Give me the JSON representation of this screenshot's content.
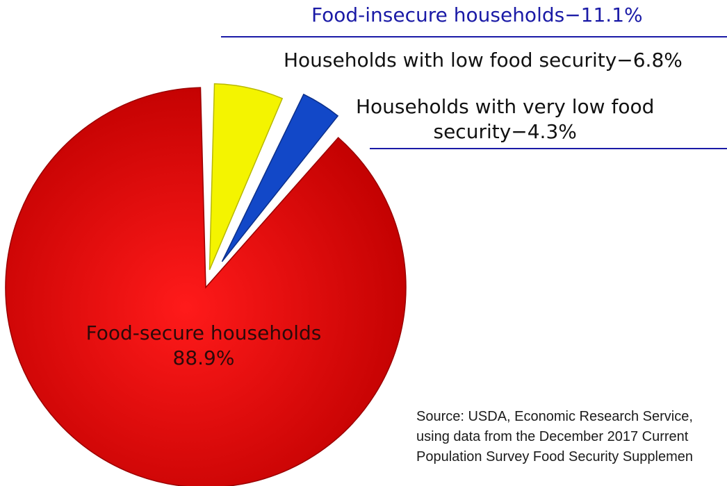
{
  "chart_data": {
    "type": "pie",
    "title": "Food-insecure households−11.1%",
    "slices": [
      {
        "label": "Food-secure households",
        "value": 88.9,
        "color": "#d40000"
      },
      {
        "label": "Households with low food security",
        "value": 6.8,
        "color": "#f4f400"
      },
      {
        "label": "Households with very low food security",
        "value": 4.3,
        "color": "#1248c8"
      }
    ],
    "annotations": {
      "insecure": "Food-insecure households−11.1%",
      "low": "Households with low food security−6.8%",
      "very_low_line1": "Households with very low food",
      "very_low_line2": "security−4.3%",
      "secure_line1": "Food-secure households",
      "secure_line2": "88.9%"
    },
    "source": {
      "line1": "Source: USDA, Economic Research Service,",
      "line2": "using data from the December 2017 Current",
      "line3": "Population Survey Food Security Supplemen"
    },
    "accent_color": "#1a1aa6"
  }
}
